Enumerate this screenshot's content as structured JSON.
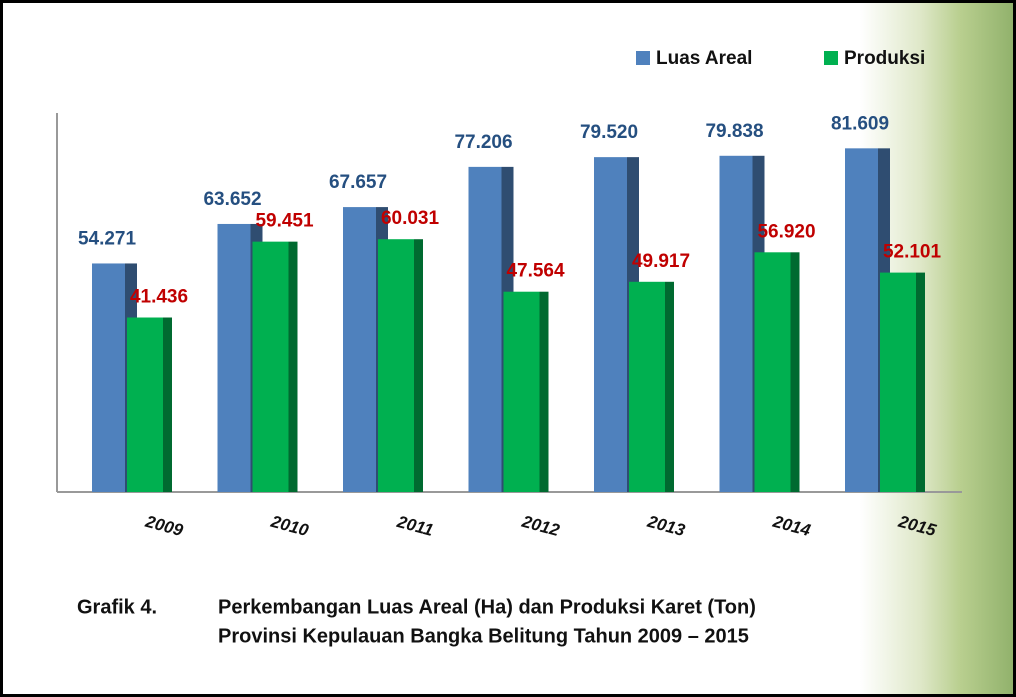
{
  "chart_data": {
    "type": "bar3d",
    "figure_label": "Grafik 4.",
    "title": "Perkembangan Luas Areal (Ha) dan Produksi Karet (Ton)",
    "subtitle": "Provinsi Kepulauan Bangka Belitung Tahun 2009 – 2015",
    "categories": [
      "2009",
      "2010",
      "2011",
      "2012",
      "2013",
      "2014",
      "2015"
    ],
    "series": [
      {
        "name": "Luas Areal",
        "color": "#4f81bd",
        "label_color": "#254f80",
        "values": [
          54271,
          63652,
          67657,
          77206,
          79520,
          79838,
          81609
        ],
        "value_labels": [
          "54.271",
          "63.652",
          "67.657",
          "77.206",
          "79.520",
          "79.838",
          "81.609"
        ]
      },
      {
        "name": "Produksi",
        "color": "#00b050",
        "label_color": "#c00000",
        "values": [
          41436,
          59451,
          60031,
          47564,
          49917,
          56920,
          52101
        ],
        "value_labels": [
          "41.436",
          "59.451",
          "60.031",
          "47.564",
          "49.917",
          "56.920",
          "52.101"
        ]
      }
    ],
    "ylim": [
      0,
      90000
    ],
    "legend": "top-right"
  }
}
